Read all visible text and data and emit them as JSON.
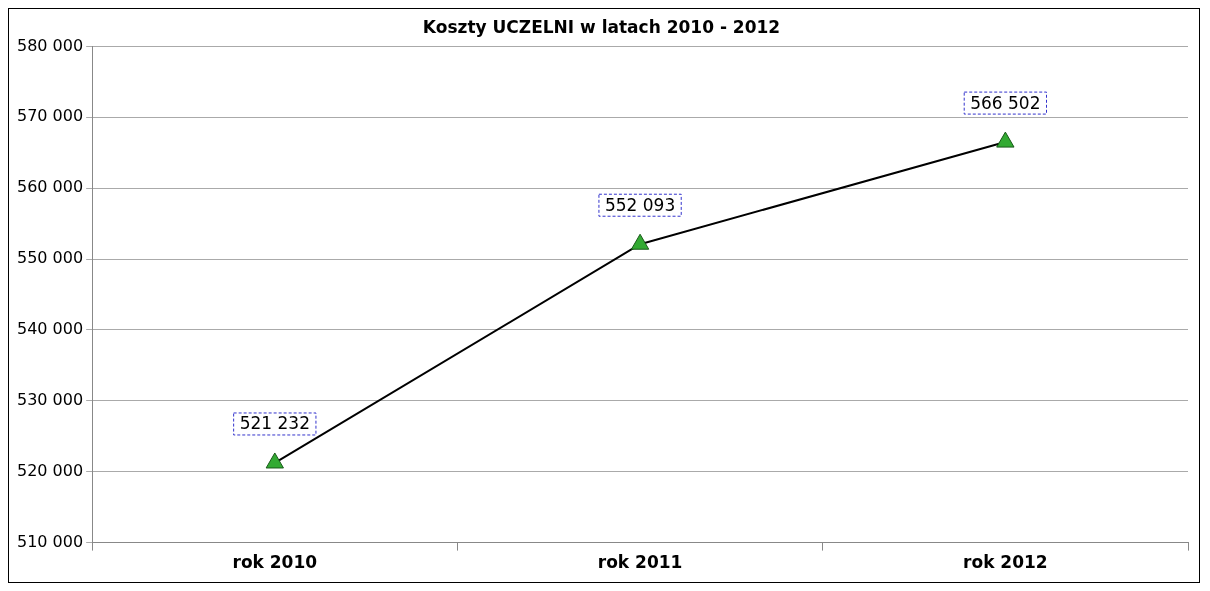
{
  "chart_data": {
    "type": "line",
    "title": "Koszty UCZELNI w latach 2010 - 2012",
    "categories": [
      "rok 2010",
      "rok 2011",
      "rok 2012"
    ],
    "series": [
      {
        "color": "#000000",
        "values": [
          521232,
          552093,
          566502
        ],
        "value_labels": [
          "521 232",
          "552 093",
          "566 502"
        ]
      }
    ],
    "ylim": [
      510000,
      580000
    ],
    "yticks": [
      {
        "value": 510000,
        "label": "510 000"
      },
      {
        "value": 520000,
        "label": "520 000"
      },
      {
        "value": 530000,
        "label": "530 000"
      },
      {
        "value": 540000,
        "label": "540 000"
      },
      {
        "value": 550000,
        "label": "550 000"
      },
      {
        "value": 560000,
        "label": "560 000"
      },
      {
        "value": 570000,
        "label": "570 000"
      },
      {
        "value": 580000,
        "label": "580 000"
      }
    ],
    "grid": "y",
    "legend": false,
    "marker": "triangle",
    "line_style": "solid"
  }
}
